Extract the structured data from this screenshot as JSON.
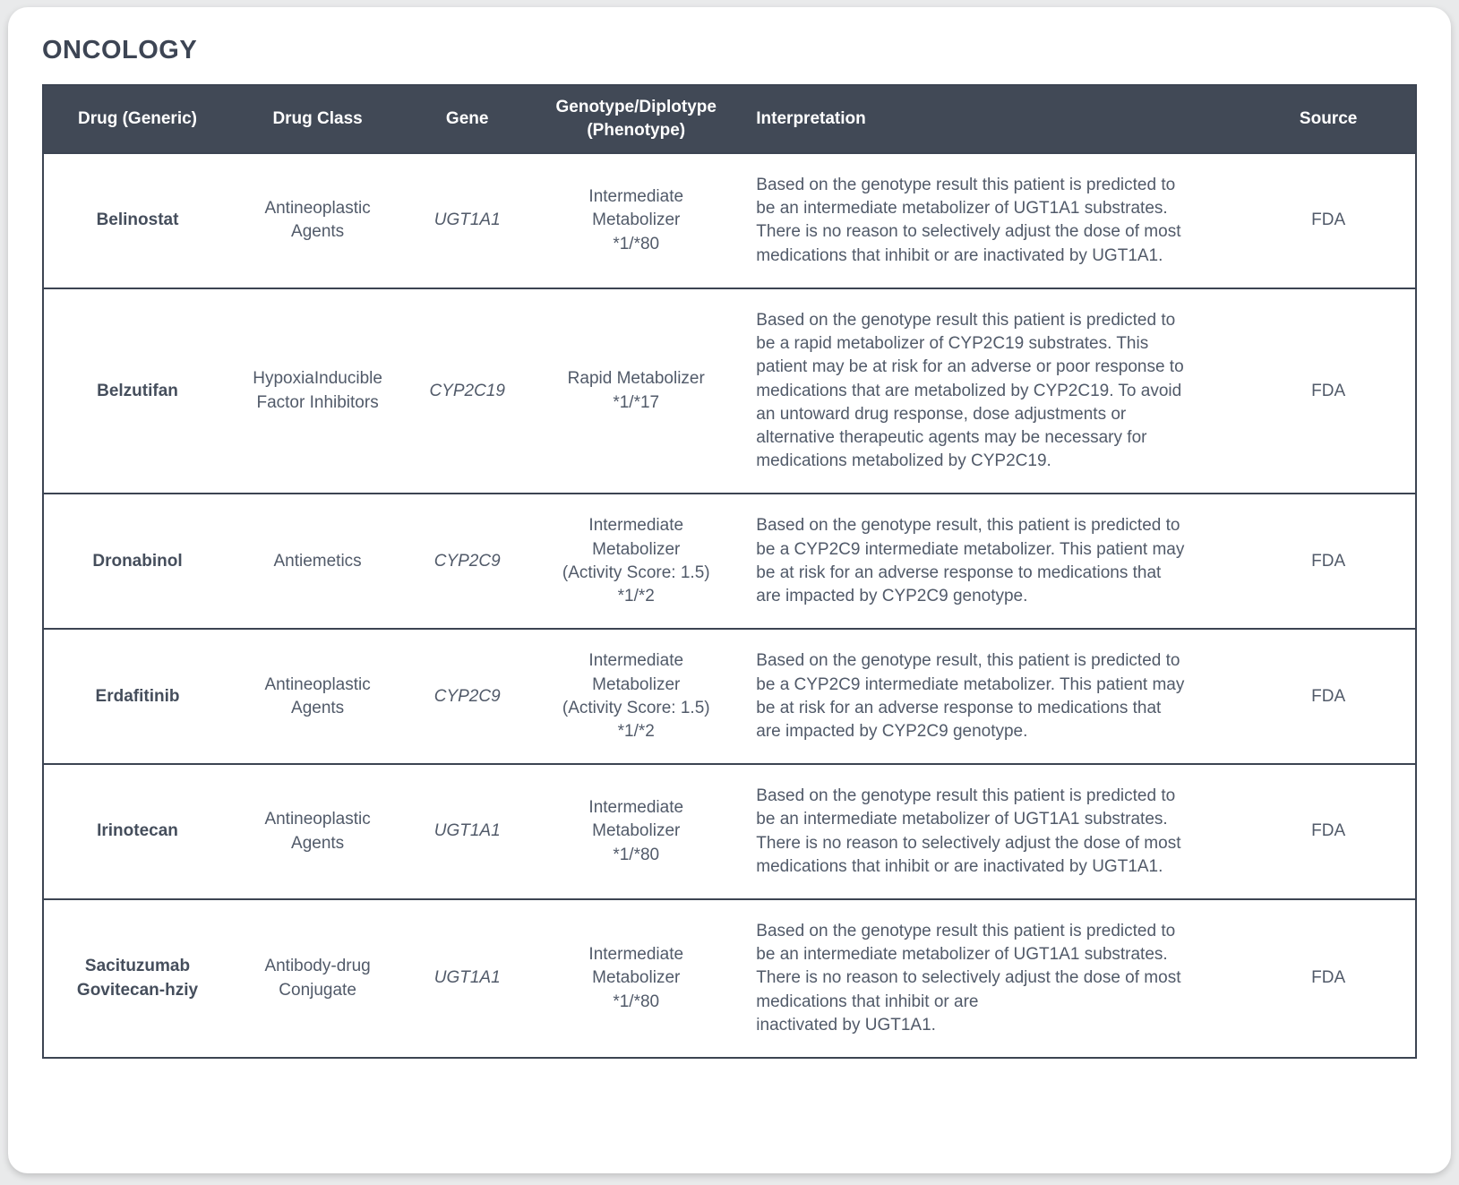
{
  "page": {
    "title": "ONCOLOGY"
  },
  "colors": {
    "card_background": "#ffffff",
    "page_background": "#e9eaeb",
    "header_background": "#414956",
    "header_text": "#ffffff",
    "border": "#3c4452",
    "body_text": "#515a69",
    "title_text": "#3d4554"
  },
  "table": {
    "columns": [
      "Drug (Generic)",
      "Drug Class",
      "Gene",
      "Genotype/Diplotype\n(Phenotype)",
      "Interpretation",
      "Source"
    ],
    "rows": [
      {
        "drug": "Belinostat",
        "drug_class": "Antineoplastic Agents",
        "gene": "UGT1A1",
        "genotype": "Intermediate\nMetabolizer\n*1/*80",
        "interpretation": "Based on the genotype result this patient is predicted to be an intermediate metabolizer of UGT1A1 substrates. There is no reason to selectively adjust the dose of most medications that inhibit or are inactivated by UGT1A1.",
        "source": "FDA"
      },
      {
        "drug": "Belzutifan",
        "drug_class": "HypoxiaInducible Factor Inhibitors",
        "gene": "CYP2C19",
        "genotype": "Rapid Metabolizer\n*1/*17",
        "interpretation": "Based on the genotype result this patient is predicted to be a rapid metabolizer of CYP2C19 substrates. This patient may be at risk for an adverse or poor response to medications that are metabolized by CYP2C19. To avoid an untoward drug response, dose adjustments or alternative therapeutic agents may be necessary for medications metabolized by CYP2C19.",
        "source": "FDA"
      },
      {
        "drug": "Dronabinol",
        "drug_class": "Antiemetics",
        "gene": "CYP2C9",
        "genotype": "Intermediate\nMetabolizer\n(Activity Score: 1.5)\n*1/*2",
        "interpretation": "Based on the genotype result, this patient is predicted to be a CYP2C9 intermediate metabolizer. This patient may be at risk for an adverse response to medications that are impacted by CYP2C9 genotype.",
        "source": "FDA"
      },
      {
        "drug": "Erdafitinib",
        "drug_class": "Antineoplastic Agents",
        "gene": "CYP2C9",
        "genotype": "Intermediate\nMetabolizer\n(Activity Score: 1.5)\n*1/*2",
        "interpretation": "Based on the genotype result, this patient is predicted to be a CYP2C9 intermediate metabolizer. This patient may be at risk for an adverse response to medications that are impacted by CYP2C9 genotype.",
        "source": "FDA"
      },
      {
        "drug": "Irinotecan",
        "drug_class": "Antineoplastic Agents",
        "gene": "UGT1A1",
        "genotype": "Intermediate\nMetabolizer\n*1/*80",
        "interpretation": "Based on the genotype result this patient is predicted to be an intermediate metabolizer of UGT1A1 substrates. There is no reason to selectively adjust the dose of most medications that inhibit or are inactivated by UGT1A1.",
        "source": "FDA"
      },
      {
        "drug": "Sacituzumab Govitecan-hziy",
        "drug_class": "Antibody-drug Conjugate",
        "gene": "UGT1A1",
        "genotype": "Intermediate\nMetabolizer\n*1/*80",
        "interpretation": "Based on the genotype result this patient is predicted to be an intermediate metabolizer of UGT1A1 substrates. There is no reason to selectively adjust the dose of most medications that inhibit or are\ninactivated by UGT1A1.",
        "source": "FDA"
      }
    ]
  }
}
